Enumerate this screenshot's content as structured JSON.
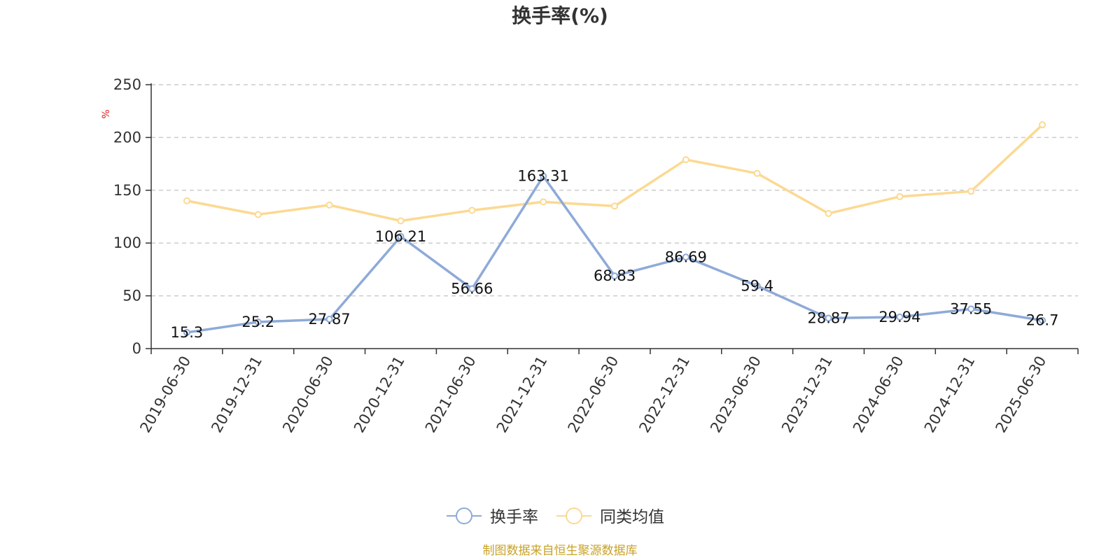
{
  "chart_data": {
    "type": "line",
    "title": "换手率(%)",
    "y_unit": "%",
    "ylim": [
      0,
      250
    ],
    "y_ticks": [
      0,
      50,
      100,
      150,
      200,
      250
    ],
    "grid": true,
    "legend_position": "bottom-center",
    "categories": [
      "2019-06-30",
      "2019-12-31",
      "2020-06-30",
      "2020-12-31",
      "2021-06-30",
      "2021-12-31",
      "2022-06-30",
      "2022-12-31",
      "2023-06-30",
      "2023-12-31",
      "2024-06-30",
      "2024-12-31",
      "2025-06-30"
    ],
    "series": [
      {
        "name": "换手率",
        "color": "#8eaad8",
        "values": [
          15.3,
          25.2,
          27.87,
          106.21,
          56.66,
          163.31,
          68.83,
          86.69,
          59.4,
          28.87,
          29.94,
          37.55,
          26.7
        ],
        "labels": [
          "15.3",
          "25.2",
          "27.87",
          "106.21",
          "56.66",
          "163.31",
          "68.83",
          "86.69",
          "59.4",
          "28.87",
          "29.94",
          "37.55",
          "26.7"
        ]
      },
      {
        "name": "同类均值",
        "color": "#fcd992",
        "values": [
          140,
          127,
          136,
          121,
          131,
          139,
          135,
          179,
          166,
          128,
          144,
          149,
          212
        ]
      }
    ]
  },
  "footer": {
    "source": "制图数据来自恒生聚源数据库",
    "source_color": "#c9a227"
  },
  "unit_color": "#e02020"
}
